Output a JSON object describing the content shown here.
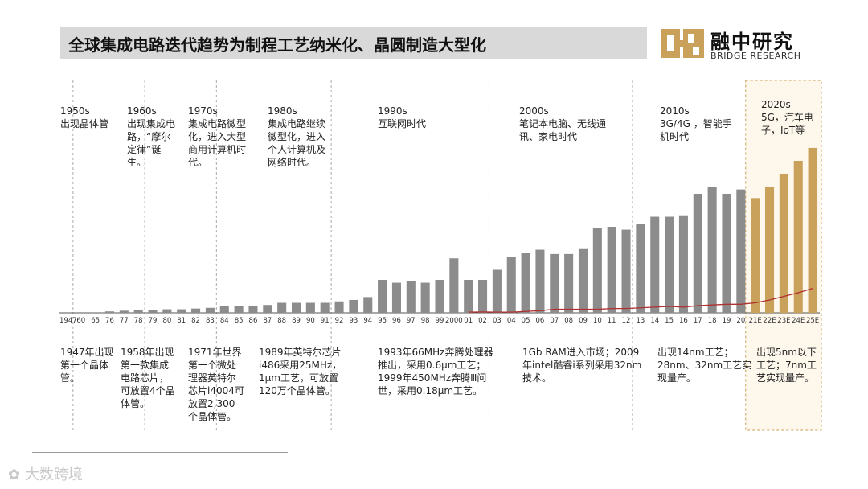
{
  "header": {
    "title": "全球集成电路迭代趋势为制程工艺纳米化、晶圆制造大型化"
  },
  "logo": {
    "name_cn": "融中研究",
    "name_en": "BRIDGE RESEARCH",
    "color": "#c9a15a"
  },
  "watermark": {
    "text": "大数跨境"
  },
  "eras": [
    {
      "year": "1950s",
      "desc": "出现晶体管"
    },
    {
      "year": "1960s",
      "desc": "出现集成电路，“摩尔定律”诞生。"
    },
    {
      "year": "1970s",
      "desc": "集成电路微型化，进入大型商用计算机时代。"
    },
    {
      "year": "1980s",
      "desc": "集成电路继续微型化，进入个人计算机及网络时代。"
    },
    {
      "year": "1990s",
      "desc": "互联网时代"
    },
    {
      "year": "2000s",
      "desc": "笔记本电脑、无线通讯、家电时代"
    },
    {
      "year": "2010s",
      "desc": "3G/4G ，智能手机时代"
    },
    {
      "year": "2020s",
      "desc": "5G，汽车电子，IoT等"
    }
  ],
  "notes": [
    "1947年出现第一个晶体管。",
    "1958年出现第一款集成电路芯片，可放置4个晶体管。",
    "1971年世界第一个微处理器英特尔芯片i4004可放置2,300个晶体管。",
    "1989年英特尔芯片i486采用25MHz，1μm工艺，可放置120万个晶体管。",
    "1993年66MHz奔腾处理器推出，采用0.6μm工艺；1999年450MHz奔腾Ⅲ问世，采用0.18μm工艺。",
    "1Gb RAM进入市场；2009年intel酷睿i系列采用32nm技术。",
    "出现14nm工艺；28nm、32nm工艺实现量产。",
    "出现5nm以下工艺；7nm工艺实现量产。"
  ],
  "chart_data": {
    "type": "bar",
    "title": "",
    "xlabel": "",
    "ylabel": "",
    "categories": [
      "1947",
      "60",
      "65",
      "76",
      "77",
      "78",
      "79",
      "80",
      "81",
      "82",
      "83",
      "84",
      "85",
      "86",
      "87",
      "88",
      "89",
      "90",
      "91",
      "92",
      "93",
      "94",
      "95",
      "96",
      "97",
      "98",
      "99",
      "2000",
      "01",
      "02",
      "03",
      "04",
      "05",
      "06",
      "07",
      "08",
      "09",
      "10",
      "11",
      "12",
      "13",
      "14",
      "15",
      "16",
      "17",
      "18",
      "19",
      "20",
      "21E",
      "22E",
      "23E",
      "24E",
      "25E"
    ],
    "series": [
      {
        "values": [
          0,
          0,
          0,
          1,
          1.5,
          2,
          2,
          2.5,
          2.5,
          3,
          3.5,
          5,
          5,
          5,
          5.5,
          7,
          7,
          7,
          7,
          8,
          9,
          11,
          23,
          21,
          22,
          21,
          23,
          38,
          23,
          23,
          30,
          39,
          42,
          44,
          41,
          41,
          45,
          59,
          60,
          58,
          62,
          67,
          67,
          68,
          83,
          88,
          83,
          86,
          80,
          88,
          97,
          106,
          115
        ],
        "colors": {
          "actual": "#8c8c8c",
          "forecast": "#c9a15a"
        }
      },
      {
        "type": "line",
        "color": "#b03030",
        "values": [
          null,
          null,
          null,
          null,
          null,
          null,
          null,
          null,
          null,
          null,
          null,
          null,
          null,
          null,
          null,
          null,
          null,
          null,
          null,
          null,
          null,
          null,
          null,
          null,
          null,
          null,
          null,
          null,
          0.5,
          0.6,
          0.5,
          0.5,
          1,
          1.5,
          2.5,
          2.5,
          2.5,
          2.5,
          3,
          3,
          3.5,
          4,
          4.5,
          4,
          5,
          5.5,
          6,
          6,
          7,
          9,
          11.5,
          14,
          17
        ]
      }
    ],
    "forecast_from": "21E",
    "ylim": [
      0,
      120
    ],
    "grid": false,
    "legend": "none"
  }
}
